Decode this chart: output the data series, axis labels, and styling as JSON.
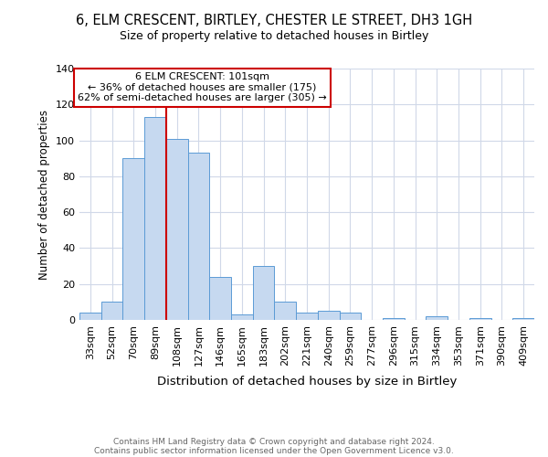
{
  "title1": "6, ELM CRESCENT, BIRTLEY, CHESTER LE STREET, DH3 1GH",
  "title2": "Size of property relative to detached houses in Birtley",
  "xlabel": "Distribution of detached houses by size in Birtley",
  "ylabel": "Number of detached properties",
  "categories": [
    "33sqm",
    "52sqm",
    "70sqm",
    "89sqm",
    "108sqm",
    "127sqm",
    "146sqm",
    "165sqm",
    "183sqm",
    "202sqm",
    "221sqm",
    "240sqm",
    "259sqm",
    "277sqm",
    "296sqm",
    "315sqm",
    "334sqm",
    "353sqm",
    "371sqm",
    "390sqm",
    "409sqm"
  ],
  "values": [
    4,
    10,
    90,
    113,
    101,
    93,
    24,
    3,
    30,
    10,
    4,
    5,
    4,
    0,
    1,
    0,
    2,
    0,
    1,
    0,
    1
  ],
  "bar_color": "#c6d9f0",
  "bar_edge_color": "#5b9bd5",
  "vline_x_index": 4.0,
  "vline_color": "#cc0000",
  "annotation_box_text": "6 ELM CRESCENT: 101sqm\n← 36% of detached houses are smaller (175)\n62% of semi-detached houses are larger (305) →",
  "annotation_box_color": "#cc0000",
  "annotation_box_bg": "#ffffff",
  "ylim": [
    0,
    140
  ],
  "yticks": [
    0,
    20,
    40,
    60,
    80,
    100,
    120,
    140
  ],
  "footer1": "Contains HM Land Registry data © Crown copyright and database right 2024.",
  "footer2": "Contains public sector information licensed under the Open Government Licence v3.0.",
  "bg_color": "#ffffff",
  "grid_color": "#d0d8e8",
  "title1_fontsize": 10.5,
  "title2_fontsize": 9,
  "ylabel_fontsize": 8.5,
  "xlabel_fontsize": 9.5,
  "tick_fontsize": 8,
  "annotation_fontsize": 8,
  "footer_fontsize": 6.5
}
